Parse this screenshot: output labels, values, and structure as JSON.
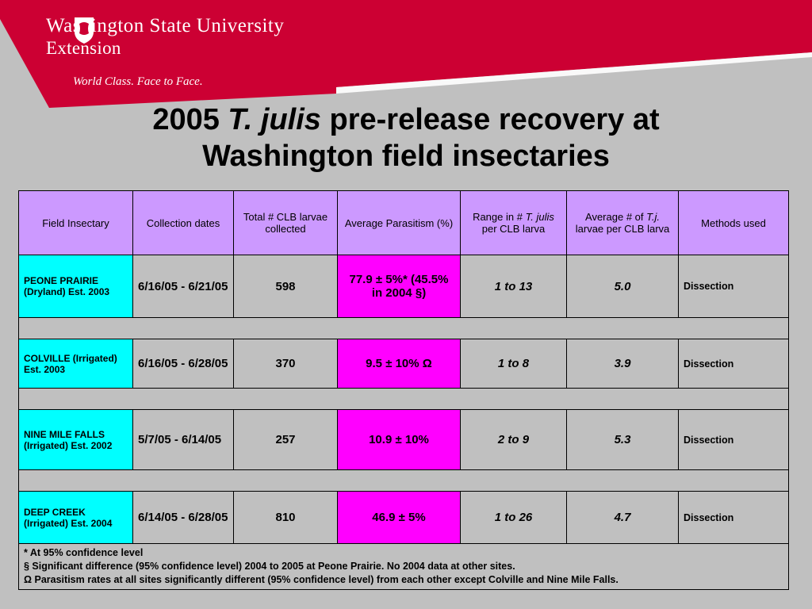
{
  "header": {
    "university": "Washington State University",
    "extension": "Extension",
    "tagline": "World Class. Face to Face.",
    "brand_color": "#cc0033"
  },
  "title": {
    "part1": "2005 ",
    "italic": "T. julis",
    "part2": " pre-release recovery at",
    "line2": "Washington field insectaries"
  },
  "table": {
    "headers": {
      "field": "Field Insectary",
      "dates": "Collection dates",
      "total": "Total # CLB larvae collected",
      "parasitism": "Average Parasitism (%)",
      "range_pre": "Range in # ",
      "range_ital": "T. julis",
      "range_post": " per CLB larva",
      "avg_pre": "Average # of ",
      "avg_ital": "T.j.",
      "avg_post": " larvae per CLB larva",
      "methods": "Methods used"
    },
    "rows": [
      {
        "site": "PEONE PRAIRIE (Dryland) Est. 2003",
        "dates": "6/16/05 - 6/21/05",
        "total": "598",
        "parasitism": "77.9 ± 5%* (45.5% in 2004 §)",
        "range": "1 to 13",
        "avg": "5.0",
        "method": "Dissection"
      },
      {
        "site": "COLVILLE (Irrigated) Est. 2003",
        "dates": "6/16/05 - 6/28/05",
        "total": "370",
        "parasitism": "9.5 ± 10% Ω",
        "range": "1 to 8",
        "avg": "3.9",
        "method": "Dissection"
      },
      {
        "site": "NINE MILE FALLS (Irrigated) Est. 2002",
        "dates": "5/7/05 - 6/14/05",
        "total": "257",
        "parasitism": "10.9 ± 10%",
        "range": "2 to 9",
        "avg": "5.3",
        "method": "Dissection"
      },
      {
        "site": "DEEP CREEK (Irrigated) Est. 2004",
        "dates": "6/14/05 - 6/28/05",
        "total": "810",
        "parasitism": "46.9 ± 5%",
        "range": "1 to 26",
        "avg": "4.7",
        "method": "Dissection"
      }
    ],
    "notes": [
      "* At 95% confidence level",
      "§ Significant difference (95% confidence level) 2004 to 2005 at Peone Prairie. No 2004 data at other sites.",
      "Ω Parasitism rates at all sites significantly different (95% confidence level) from each other except Colville and Nine Mile Falls."
    ]
  }
}
